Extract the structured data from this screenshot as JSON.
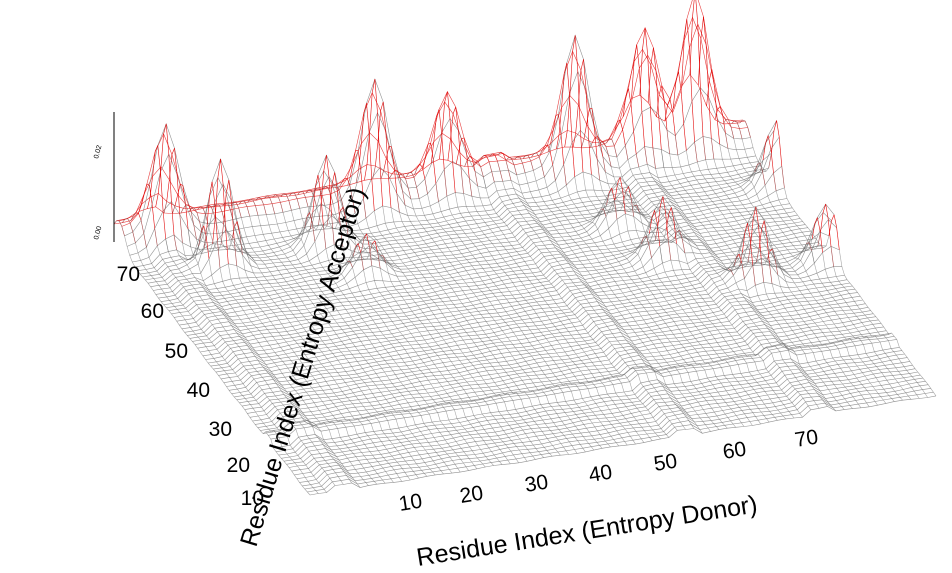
{
  "chart_data": {
    "type": "surface3d",
    "title": "",
    "xlabel": "Residue Index (Entropy Donor)",
    "ylabel": "Residue Index (Entropy Acceptor)",
    "zlabel": "",
    "x_ticks": [
      "10",
      "20",
      "30",
      "40",
      "50",
      "60",
      "70"
    ],
    "y_ticks": [
      "10",
      "20",
      "30",
      "40",
      "50",
      "60",
      "70"
    ],
    "z_ticks": [
      "0.00",
      "0.02"
    ],
    "xlim": [
      1,
      76
    ],
    "ylim": [
      1,
      76
    ],
    "zlim": [
      0,
      0.035
    ],
    "colors": {
      "low": "#6e6e6e",
      "high": "#e00000",
      "grid": "#000000"
    },
    "peaks": [
      {
        "x": 10,
        "y": 64,
        "z": 0.026
      },
      {
        "x": 23,
        "y": 65,
        "z": 0.022
      },
      {
        "x": 31,
        "y": 72,
        "z": 0.028
      },
      {
        "x": 40,
        "y": 73,
        "z": 0.02
      },
      {
        "x": 55,
        "y": 72,
        "z": 0.031
      },
      {
        "x": 64,
        "y": 74,
        "z": 0.026
      },
      {
        "x": 70,
        "y": 74,
        "z": 0.033
      },
      {
        "x": 76,
        "y": 62,
        "z": 0.016
      },
      {
        "x": 75,
        "y": 40,
        "z": 0.014
      },
      {
        "x": 66,
        "y": 38,
        "z": 0.018
      },
      {
        "x": 58,
        "y": 48,
        "z": 0.015
      },
      {
        "x": 56,
        "y": 58,
        "z": 0.012
      },
      {
        "x": 25,
        "y": 56,
        "z": 0.01
      },
      {
        "x": 6,
        "y": 72,
        "z": 0.024
      }
    ]
  }
}
